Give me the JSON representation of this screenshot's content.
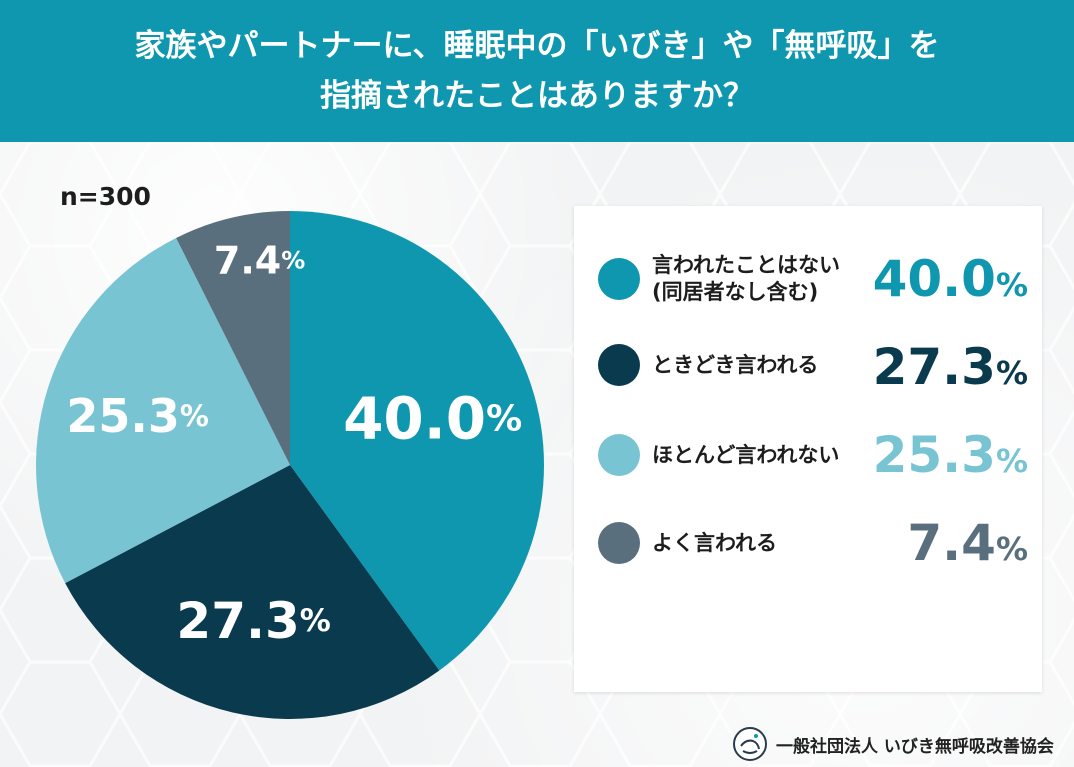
{
  "header": {
    "title_line1": "家族やパートナーに、睡眠中の「いびき」や「無呼吸」を",
    "title_line2": "指摘されたことはありますか？"
  },
  "sample_size": "n=300",
  "footer": {
    "org": "一般社団法人 いびき無呼吸改善協会",
    "logo_icon": "sleeping-face-icon"
  },
  "colors": {
    "header": "#0e97ae",
    "background": "#f2f3f4"
  },
  "chart_data": {
    "type": "pie",
    "percent_suffix": "%",
    "slices": [
      {
        "label_line1": "言われたことはない",
        "label_line2": "(同居者なし含む)",
        "value": 40.0,
        "display": "40.0",
        "color": "#0e97ae"
      },
      {
        "label_line1": "ときどき言われる",
        "label_line2": "",
        "value": 27.3,
        "display": "27.3",
        "color": "#0a3a4e"
      },
      {
        "label_line1": "ほとんど言われない",
        "label_line2": "",
        "value": 25.3,
        "display": "25.3",
        "color": "#78c4d3"
      },
      {
        "label_line1": "よく言われる",
        "label_line2": "",
        "value": 7.4,
        "display": "7.4",
        "color": "#5a6f7d"
      }
    ]
  }
}
